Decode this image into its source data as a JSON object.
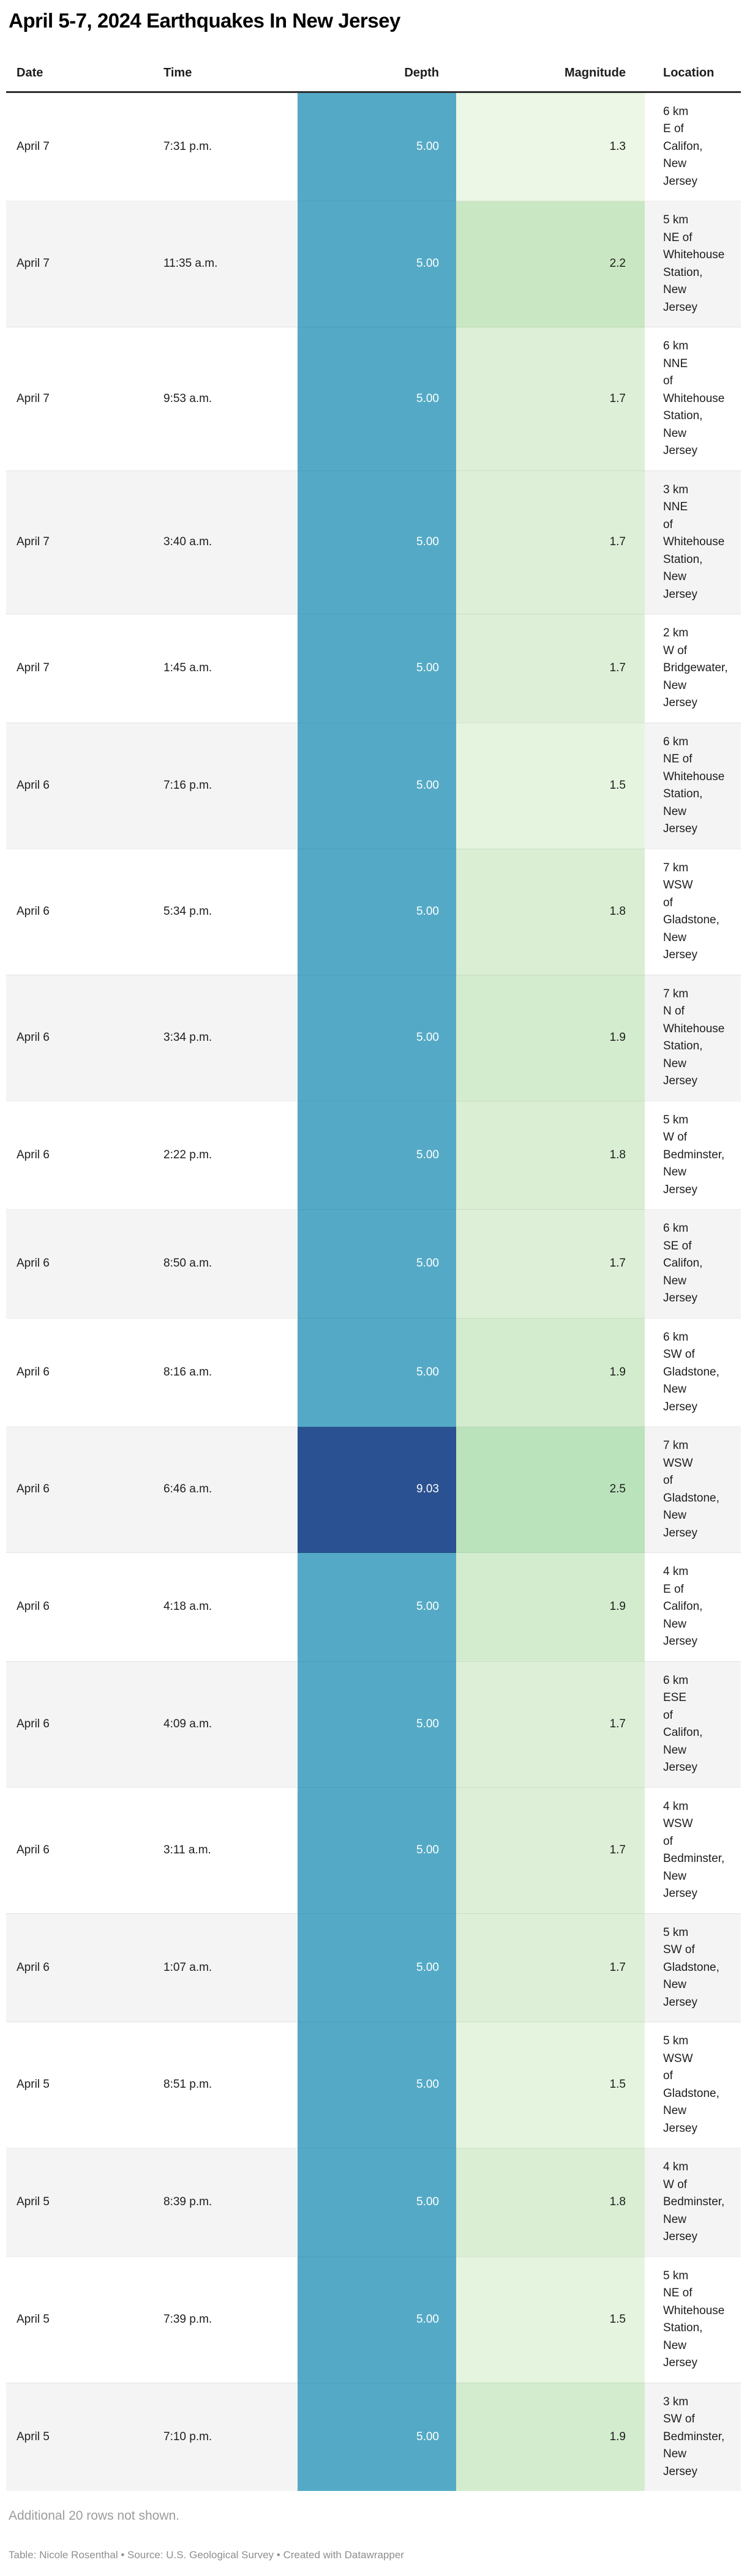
{
  "chart_data": {
    "type": "table",
    "title": "April 5-7, 2024 Earthquakes In New Jersey",
    "columns": [
      "Date",
      "Time",
      "Depth",
      "Magnitude",
      "Location"
    ],
    "column_alignment": [
      "left",
      "left",
      "right",
      "right",
      "left"
    ],
    "rows": [
      {
        "date": "April 7",
        "time": "7:31 p.m.",
        "depth": "5.00",
        "magnitude": "1.3",
        "location": "6 km E of Califon, New Jersey"
      },
      {
        "date": "April 7",
        "time": "11:35 a.m.",
        "depth": "5.00",
        "magnitude": "2.2",
        "location": "5 km NE of Whitehouse Station, New Jersey"
      },
      {
        "date": "April 7",
        "time": "9:53 a.m.",
        "depth": "5.00",
        "magnitude": "1.7",
        "location": "6 km NNE of Whitehouse Station, New Jersey"
      },
      {
        "date": "April 7",
        "time": "3:40 a.m.",
        "depth": "5.00",
        "magnitude": "1.7",
        "location": "3 km NNE of Whitehouse Station, New Jersey"
      },
      {
        "date": "April 7",
        "time": "1:45 a.m.",
        "depth": "5.00",
        "magnitude": "1.7",
        "location": "2 km W of Bridgewater, New Jersey"
      },
      {
        "date": "April 6",
        "time": "7:16 p.m.",
        "depth": "5.00",
        "magnitude": "1.5",
        "location": "6 km NE of Whitehouse Station, New Jersey"
      },
      {
        "date": "April 6",
        "time": "5:34 p.m.",
        "depth": "5.00",
        "magnitude": "1.8",
        "location": "7 km WSW of Gladstone, New Jersey"
      },
      {
        "date": "April 6",
        "time": "3:34 p.m.",
        "depth": "5.00",
        "magnitude": "1.9",
        "location": "7 km N of Whitehouse Station, New Jersey"
      },
      {
        "date": "April 6",
        "time": "2:22 p.m.",
        "depth": "5.00",
        "magnitude": "1.8",
        "location": "5 km W of Bedminster, New Jersey"
      },
      {
        "date": "April 6",
        "time": "8:50 a.m.",
        "depth": "5.00",
        "magnitude": "1.7",
        "location": "6 km SE of Califon, New Jersey"
      },
      {
        "date": "April 6",
        "time": "8:16 a.m.",
        "depth": "5.00",
        "magnitude": "1.9",
        "location": "6 km SW of Gladstone, New Jersey"
      },
      {
        "date": "April 6",
        "time": "6:46 a.m.",
        "depth": "9.03",
        "magnitude": "2.5",
        "location": "7 km WSW of Gladstone, New Jersey"
      },
      {
        "date": "April 6",
        "time": "4:18 a.m.",
        "depth": "5.00",
        "magnitude": "1.9",
        "location": "4 km E of Califon, New Jersey"
      },
      {
        "date": "April 6",
        "time": "4:09 a.m.",
        "depth": "5.00",
        "magnitude": "1.7",
        "location": "6 km ESE of Califon, New Jersey"
      },
      {
        "date": "April 6",
        "time": "3:11 a.m.",
        "depth": "5.00",
        "magnitude": "1.7",
        "location": "4 km WSW of Bedminster, New Jersey"
      },
      {
        "date": "April 6",
        "time": "1:07 a.m.",
        "depth": "5.00",
        "magnitude": "1.7",
        "location": "5 km SW of Gladstone, New Jersey"
      },
      {
        "date": "April 5",
        "time": "8:51 p.m.",
        "depth": "5.00",
        "magnitude": "1.5",
        "location": "5 km WSW of Gladstone, New Jersey"
      },
      {
        "date": "April 5",
        "time": "8:39 p.m.",
        "depth": "5.00",
        "magnitude": "1.8",
        "location": "4 km W of Bedminster, New Jersey"
      },
      {
        "date": "April 5",
        "time": "7:39 p.m.",
        "depth": "5.00",
        "magnitude": "1.5",
        "location": "5 km NE of Whitehouse Station, New Jersey"
      },
      {
        "date": "April 5",
        "time": "7:10 p.m.",
        "depth": "5.00",
        "magnitude": "1.9",
        "location": "3 km SW of Bedminster, New Jersey"
      }
    ],
    "heatmap": {
      "depth_colors": {
        "5.00": "#54aac6",
        "9.03": "#2a5191"
      },
      "magnitude_colors": {
        "1.3": "#ecf7e6",
        "1.5": "#e5f4df",
        "1.7": "#ddefd7",
        "1.8": "#d9eed3",
        "1.9": "#d4ecce",
        "2.2": "#c9e7c2",
        "2.5": "#bae3bb"
      }
    },
    "layout_hints": {
      "zebra_stripe_color": "#f4f4f4",
      "depth_text_color": "#ffffff",
      "header_rule_color": "#2e2e2e",
      "legend_position": "none",
      "grid": "row-separators"
    }
  },
  "footer": {
    "additional_note": "Additional 20 rows not shown.",
    "credit": "Table: Nicole Rosenthal • Source: U.S. Geological Survey • Created with Datawrapper"
  }
}
